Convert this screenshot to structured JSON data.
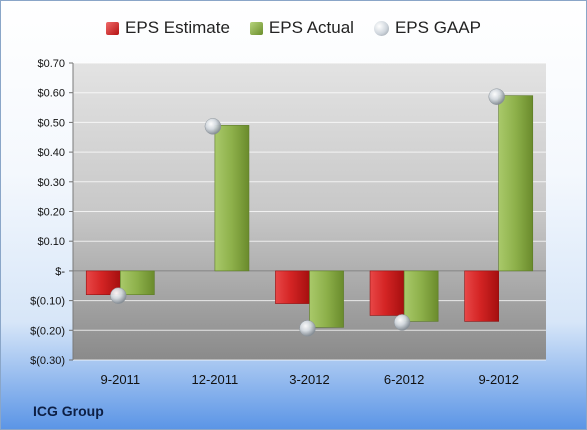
{
  "chart_data": {
    "type": "bar",
    "categories": [
      "9-2011",
      "12-2011",
      "3-2012",
      "6-2012",
      "9-2012"
    ],
    "series": [
      {
        "name": "EPS Estimate",
        "kind": "bar",
        "color": "#c81e1e",
        "values": [
          -0.08,
          null,
          -0.11,
          -0.15,
          -0.17
        ]
      },
      {
        "name": "EPS Actual",
        "kind": "bar",
        "color": "#8db04a",
        "values": [
          -0.08,
          0.49,
          -0.19,
          -0.17,
          0.59
        ]
      },
      {
        "name": "EPS GAAP",
        "kind": "marker",
        "color": "#b8c0c8",
        "values": [
          -0.08,
          0.49,
          -0.19,
          -0.17,
          0.59
        ]
      }
    ],
    "y_ticks": [
      0.7,
      0.6,
      0.5,
      0.4,
      0.3,
      0.2,
      0.1,
      0,
      -0.1,
      -0.2,
      -0.3
    ],
    "y_tick_labels": [
      "$0.70",
      "$0.60",
      "$0.50",
      "$0.40",
      "$0.30",
      "$0.20",
      "$0.10",
      "$-",
      "$(0.10)",
      "$(0.20)",
      "$(0.30)"
    ],
    "ylim": [
      -0.3,
      0.7
    ],
    "grid": true,
    "legend_position": "top-center",
    "company": "ICG Group"
  }
}
